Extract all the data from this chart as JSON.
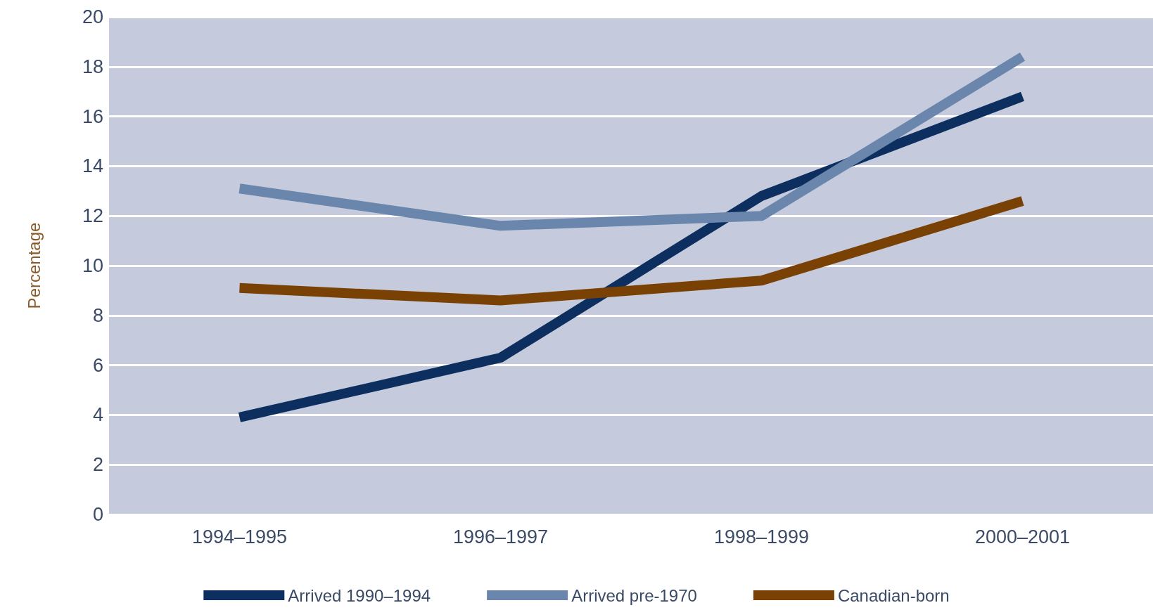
{
  "chart_data": {
    "type": "line",
    "ylabel": "Percentage",
    "categories": [
      "1994–1995",
      "1996–1997",
      "1998–1999",
      "2000–2001"
    ],
    "series": [
      {
        "name": "Arrived 1990–1994",
        "color": "#0d2f5f",
        "values": [
          3.9,
          6.3,
          12.8,
          16.8
        ]
      },
      {
        "name": "Arrived pre-1970",
        "color": "#6a86ad",
        "values": [
          13.1,
          11.6,
          12.0,
          18.4
        ]
      },
      {
        "name": "Canadian-born",
        "color": "#7a4105",
        "values": [
          9.1,
          8.6,
          9.4,
          12.6
        ]
      }
    ],
    "ylim": [
      0,
      20
    ],
    "yticks": [
      0,
      2,
      4,
      6,
      8,
      10,
      12,
      14,
      16,
      18,
      20
    ],
    "grid": "y",
    "legend": "bottom",
    "marker": "none",
    "line_style": "solid"
  }
}
